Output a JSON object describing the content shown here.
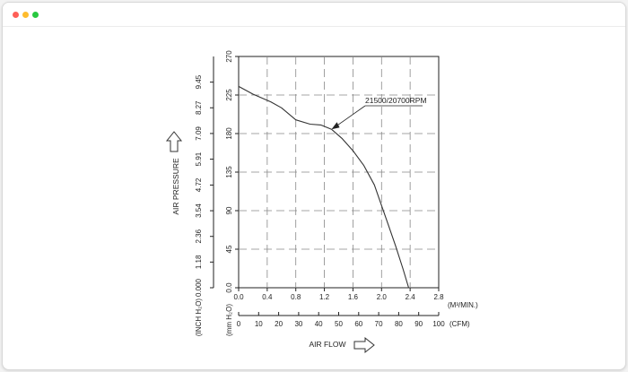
{
  "window": {
    "controls": {
      "close_color": "#fe5f57",
      "minimize_color": "#febc2e",
      "maximize_color": "#28c840"
    }
  },
  "chart_data": {
    "type": "line",
    "title": "",
    "ylabel": "AIR PRESSURE",
    "xlabel": "AIR FLOW",
    "x_unit_top": "(M³/MIN.)",
    "x_unit_bottom": "(CFM)",
    "y_unit_inner": "(mm H₂O)",
    "y_unit_outer": "(INCH H₂O)",
    "xlim": [
      0,
      2.8
    ],
    "ylim": [
      0,
      270
    ],
    "x_ticks_m3": [
      "0.0",
      "0.4",
      "0.8",
      "1.2",
      "1.6",
      "2.0",
      "2.4",
      "2.8"
    ],
    "x_ticks_cfm": [
      "0",
      "10",
      "20",
      "30",
      "40",
      "50",
      "60",
      "70",
      "80",
      "90",
      "100"
    ],
    "y_ticks_mm": [
      "0.0",
      "45",
      "90",
      "135",
      "180",
      "225",
      "270"
    ],
    "y_ticks_inch": [
      "0.000",
      "1.18",
      "2.36",
      "3.54",
      "4.72",
      "5.91",
      "7.09",
      "8.27",
      "9.45"
    ],
    "grid": true,
    "series": [
      {
        "name": "21500/20700RPM",
        "x": [
          0.0,
          0.2,
          0.45,
          0.6,
          0.8,
          1.0,
          1.15,
          1.3,
          1.45,
          1.6,
          1.75,
          1.9,
          2.0,
          2.1,
          2.2,
          2.3,
          2.38
        ],
        "y": [
          235,
          226,
          217,
          210,
          196,
          191,
          190,
          185,
          174,
          160,
          143,
          120,
          96,
          72,
          48,
          22,
          0
        ]
      }
    ],
    "annotation": {
      "text": "21500/20700RPM",
      "arrow_to": [
        1.3,
        185
      ]
    }
  }
}
